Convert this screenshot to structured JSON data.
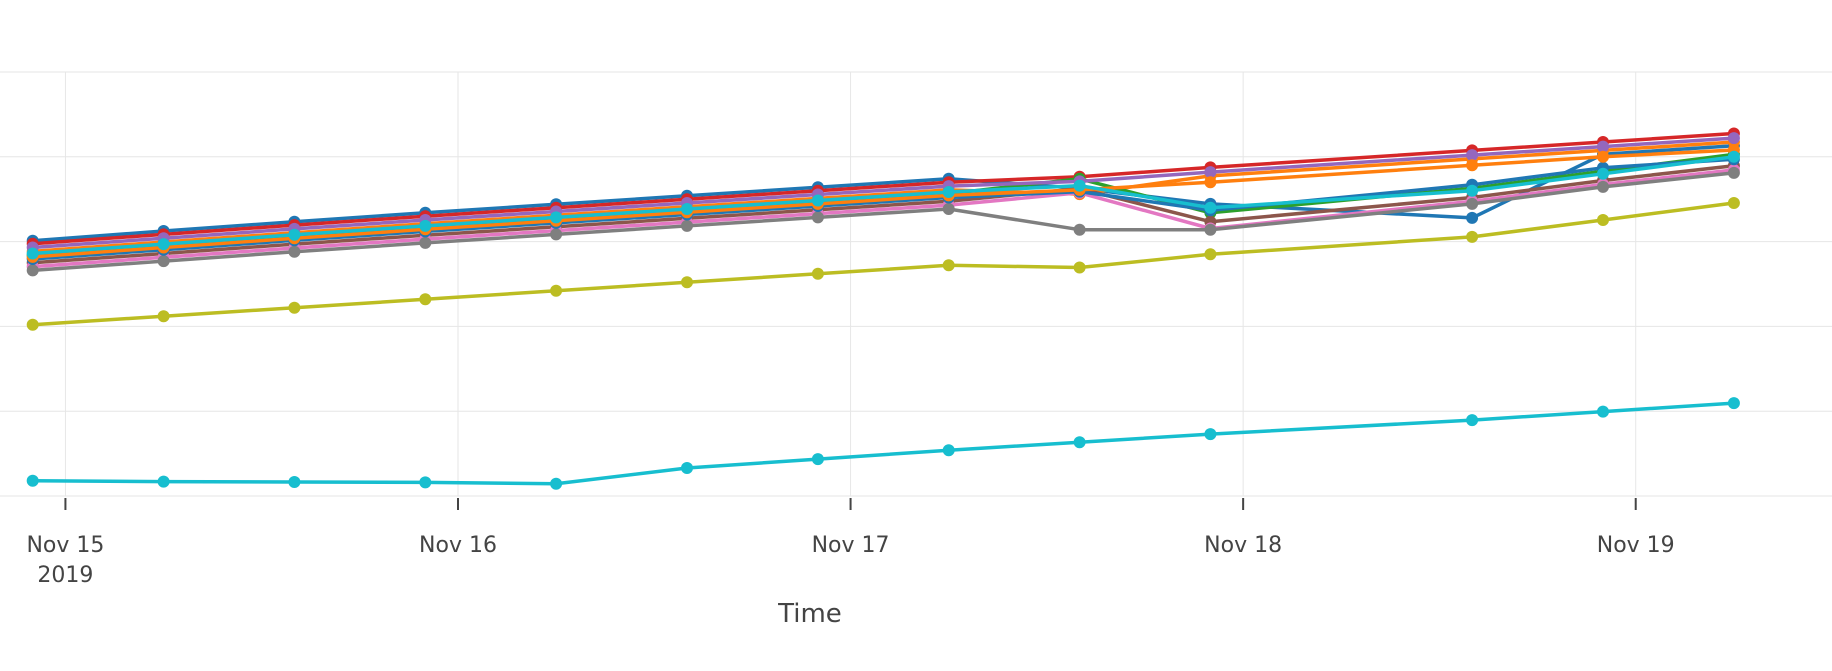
{
  "chart_data": {
    "type": "line",
    "title": "",
    "xlabel": "Time",
    "ylabel": "",
    "grid": true,
    "legend": "none",
    "x_range": [
      "2019-11-14T20:00",
      "2019-11-19T12:00"
    ],
    "y_range": [
      0,
      100
    ],
    "x_ticks": [
      {
        "value": "2019-11-15T00:00",
        "label": "Nov 15",
        "sublabel": "2019"
      },
      {
        "value": "2019-11-16T00:00",
        "label": "Nov 16",
        "sublabel": ""
      },
      {
        "value": "2019-11-17T00:00",
        "label": "Nov 17",
        "sublabel": ""
      },
      {
        "value": "2019-11-18T00:00",
        "label": "Nov 18",
        "sublabel": ""
      },
      {
        "value": "2019-11-19T00:00",
        "label": "Nov 19",
        "sublabel": ""
      }
    ],
    "y_gridlines": [
      0,
      20,
      40,
      60,
      80,
      100
    ],
    "x": [
      "2019-11-14T22:00",
      "2019-11-15T06:00",
      "2019-11-15T14:00",
      "2019-11-15T22:00",
      "2019-11-16T06:00",
      "2019-11-16T14:00",
      "2019-11-16T22:00",
      "2019-11-17T06:00",
      "2019-11-17T14:00",
      "2019-11-17T22:00",
      "2019-11-18T14:00",
      "2019-11-18T22:00",
      "2019-11-19T06:00"
    ],
    "series": [
      {
        "color": "#1f77b4",
        "values": [
          60.2,
          62.5,
          64.7,
          66.8,
          68.8,
          70.8,
          72.8,
          74.8,
          72.6,
          68.9,
          65.6,
          80.6,
          82.6
        ]
      },
      {
        "color": "#d62728",
        "values": [
          59.5,
          61.7,
          63.9,
          66.0,
          68.0,
          70.0,
          72.0,
          74.0,
          75.3,
          77.5,
          81.5,
          83.5,
          85.5
        ]
      },
      {
        "color": "#ff7f0e",
        "values": [
          57.7,
          59.9,
          62.1,
          64.2,
          66.2,
          68.2,
          70.2,
          72.2,
          71.2,
          75.5,
          79.5,
          81.5,
          83.5
        ]
      },
      {
        "color": "#2ca02c",
        "values": [
          56.8,
          59.0,
          61.2,
          63.3,
          65.3,
          67.3,
          69.3,
          71.3,
          74.8,
          66.8,
          72.6,
          76.6,
          80.6
        ]
      },
      {
        "color": "#9467bd",
        "values": [
          58.6,
          60.8,
          63.0,
          65.1,
          67.1,
          69.1,
          71.1,
          73.1,
          74.2,
          76.4,
          80.4,
          82.4,
          84.4
        ]
      },
      {
        "color": "#8c564b",
        "values": [
          55.0,
          57.2,
          59.4,
          61.5,
          63.5,
          65.5,
          67.5,
          69.5,
          72.5,
          64.7,
          70.4,
          74.4,
          77.9
        ]
      },
      {
        "color": "#e377c2",
        "values": [
          54.1,
          56.3,
          58.5,
          60.6,
          62.6,
          64.6,
          66.6,
          68.6,
          71.5,
          63.1,
          69.5,
          73.5,
          76.9
        ]
      },
      {
        "color": "#7f7f7f",
        "values": [
          53.2,
          55.4,
          57.6,
          59.7,
          61.7,
          63.7,
          65.7,
          67.7,
          62.8,
          62.8,
          68.9,
          72.9,
          76.2
        ]
      },
      {
        "color": "#bcbd22",
        "values": [
          40.4,
          42.4,
          44.4,
          46.4,
          48.4,
          50.4,
          52.4,
          54.4,
          53.9,
          57.0,
          61.1,
          65.1,
          69.1
        ]
      },
      {
        "color": "#17becf",
        "values": [
          3.6,
          3.4,
          3.3,
          3.2,
          2.9,
          6.6,
          8.7,
          10.8,
          12.7,
          14.6,
          17.9,
          19.9,
          21.9
        ]
      },
      {
        "color": "#1f77b4",
        "values": [
          55.9,
          58.1,
          60.3,
          62.4,
          64.4,
          66.4,
          68.4,
          70.4,
          71.8,
          67.4,
          73.4,
          77.4,
          79.4
        ]
      },
      {
        "color": "#ff7f0e",
        "values": [
          56.4,
          58.6,
          60.8,
          62.9,
          64.9,
          66.9,
          68.9,
          70.9,
          72.2,
          74.0,
          78.0,
          80.0,
          81.6
        ]
      },
      {
        "color": "#17becf",
        "values": [
          57.2,
          59.4,
          61.6,
          63.7,
          65.7,
          67.7,
          69.7,
          71.7,
          73.2,
          68.0,
          72.0,
          76.0,
          80.0
        ]
      }
    ]
  }
}
